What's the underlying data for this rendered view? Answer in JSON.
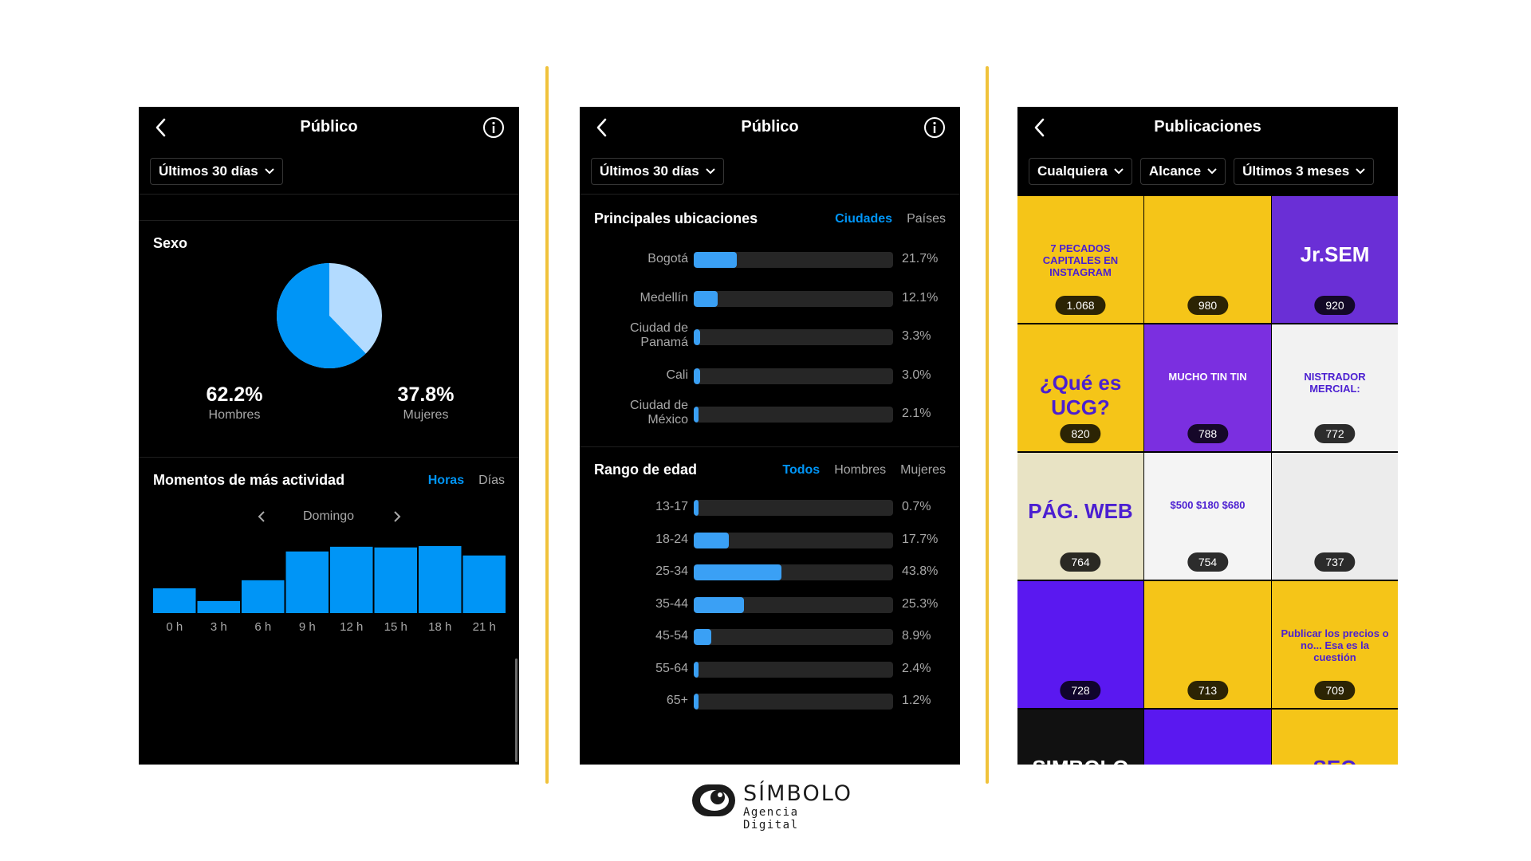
{
  "panel1": {
    "title": "Público",
    "filter": "Últimos 30 días",
    "gender": {
      "title": "Sexo",
      "men_value": "62.2%",
      "men_label": "Hombres",
      "women_value": "37.8%",
      "women_label": "Mujeres",
      "men_fraction": 0.622,
      "colors": {
        "men": "#0095f6",
        "women": "#b3dbff"
      }
    },
    "activity": {
      "title": "Momentos de más actividad",
      "toggle": [
        "Horas",
        "Días"
      ],
      "day": "Domingo",
      "hours": [
        "0 h",
        "3 h",
        "6 h",
        "9 h",
        "12 h",
        "15 h",
        "18 h",
        "21 h"
      ],
      "levels": [
        0.37,
        0.18,
        0.49,
        0.92,
        0.99,
        0.98,
        1.0,
        0.86
      ]
    }
  },
  "panel2": {
    "title": "Público",
    "filter": "Últimos 30 días",
    "locations": {
      "title": "Principales ubicaciones",
      "toggle": [
        "Ciudades",
        "Países"
      ],
      "rows": [
        {
          "label": "Bogotá",
          "value": "21.7%",
          "fraction": 0.217
        },
        {
          "label": "Medellín",
          "value": "12.1%",
          "fraction": 0.121
        },
        {
          "label": "Ciudad de Panamá",
          "value": "3.3%",
          "fraction": 0.033
        },
        {
          "label": "Cali",
          "value": "3.0%",
          "fraction": 0.03
        },
        {
          "label": "Ciudad de México",
          "value": "2.1%",
          "fraction": 0.021
        }
      ]
    },
    "age": {
      "title": "Rango de edad",
      "toggle": [
        "Todos",
        "Hombres",
        "Mujeres"
      ],
      "rows": [
        {
          "label": "13-17",
          "value": "0.7%",
          "fraction": 0.007
        },
        {
          "label": "18-24",
          "value": "17.7%",
          "fraction": 0.177
        },
        {
          "label": "25-34",
          "value": "43.8%",
          "fraction": 0.438
        },
        {
          "label": "35-44",
          "value": "25.3%",
          "fraction": 0.253
        },
        {
          "label": "45-54",
          "value": "8.9%",
          "fraction": 0.089
        },
        {
          "label": "55-64",
          "value": "2.4%",
          "fraction": 0.024
        },
        {
          "label": "65+",
          "value": "1.2%",
          "fraction": 0.012
        }
      ]
    }
  },
  "panel3": {
    "title": "Publicaciones",
    "filters": [
      "Cualquiera",
      "Alcance",
      "Últimos 3 meses"
    ],
    "posts": [
      {
        "reach": "1.068",
        "bg": "#f5c518",
        "caption": "7 PECADOS CAPITALES EN INSTAGRAM"
      },
      {
        "reach": "980",
        "bg": "#f5c518",
        "caption": ""
      },
      {
        "reach": "920",
        "bg": "#6a2fd6",
        "caption": "Jr.SEM"
      },
      {
        "reach": "820",
        "bg": "#f5c518",
        "caption": "¿Qué es UCG?"
      },
      {
        "reach": "788",
        "bg": "#7b2fe0",
        "caption": "MUCHO TIN TIN"
      },
      {
        "reach": "772",
        "bg": "#f2f2f2",
        "caption": "NISTRADOR MERCIAL:"
      },
      {
        "reach": "764",
        "bg": "#e8e3c4",
        "caption": "PÁG. WEB"
      },
      {
        "reach": "754",
        "bg": "#f4f4f4",
        "caption": "$500 $180 $680"
      },
      {
        "reach": "737",
        "bg": "#ececec",
        "caption": ""
      },
      {
        "reach": "728",
        "bg": "#5a18f0",
        "caption": ""
      },
      {
        "reach": "713",
        "bg": "#f5c518",
        "caption": ""
      },
      {
        "reach": "709",
        "bg": "#f5c518",
        "caption": "Publicar los precios o no... Esa es la cuestión"
      },
      {
        "reach": "",
        "bg": "#111111",
        "caption": "SIMBOLO"
      },
      {
        "reach": "",
        "bg": "#5a18f0",
        "caption": ""
      },
      {
        "reach": "",
        "bg": "#f5c518",
        "caption": "SEO"
      }
    ]
  },
  "logo": {
    "brand": "SÍMBOLO",
    "tagline": "Agencia Digital"
  }
}
